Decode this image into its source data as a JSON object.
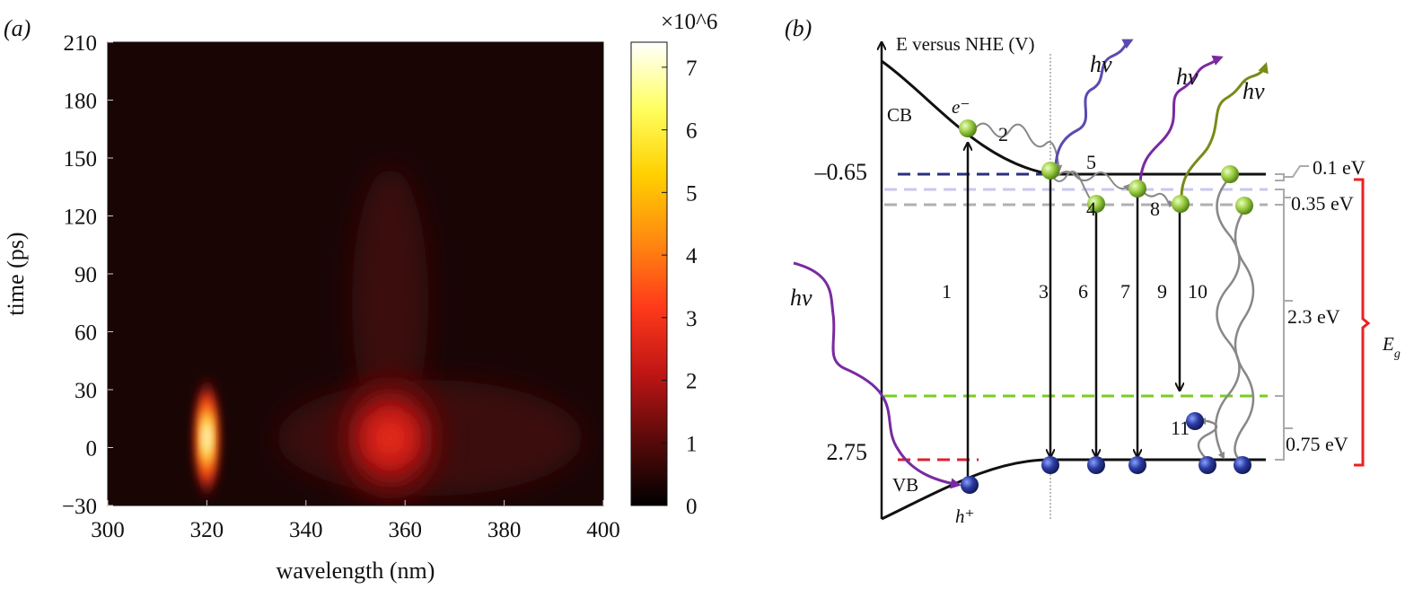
{
  "chart_data": [
    {
      "panel_label": "(a)",
      "type": "heatmap",
      "xlabel": "wavelength (nm)",
      "ylabel": "time (ps)",
      "xlim": [
        300,
        400
      ],
      "ylim": [
        -30,
        210
      ],
      "xticks": [
        300,
        320,
        340,
        360,
        380,
        400
      ],
      "yticks": [
        -30,
        0,
        30,
        60,
        90,
        120,
        150,
        180,
        210
      ],
      "background_color": "#1a0505",
      "colorbar": {
        "multiplier": "×10^6",
        "ticks": [
          0,
          1,
          2,
          3,
          4,
          5,
          6,
          7
        ],
        "range": [
          0,
          7.4
        ],
        "colormap": "hot",
        "colors": [
          "#000000",
          "#5a0a0a",
          "#c01515",
          "#ff3a1a",
          "#ff8a10",
          "#ffd000",
          "#ffff60",
          "#ffffff"
        ]
      },
      "peaks": [
        {
          "wavelength_nm": 320,
          "time_ps": 5,
          "intensity_e6": 7.3,
          "width_nm": 4,
          "duration_ps": 40
        },
        {
          "wavelength_nm": 357,
          "time_ps": 5,
          "intensity_e6": 3.2,
          "width_nm": 14,
          "duration_ps": 60,
          "tail_to_ps": 145
        }
      ]
    }
  ],
  "diagram": {
    "panel_label": "(b)",
    "axis_label": "E versus NHE (V)",
    "levels": {
      "cb_value": "–0.65",
      "vb_value": "2.75"
    },
    "band_labels": {
      "cb": "CB",
      "vb": "VB",
      "electron": "e⁻",
      "hole": "h⁺"
    },
    "photon": "hν",
    "steps": [
      "1",
      "2",
      "3",
      "4",
      "5",
      "6",
      "7",
      "8",
      "9",
      "10",
      "11"
    ],
    "energy_gaps": [
      "0.1 eV",
      "0.35 eV",
      "2.3 eV",
      "0.75 eV"
    ],
    "bandgap_label": "E",
    "bandgap_sub": "g",
    "colors": {
      "navy_level": "#2a2f7a",
      "lavender_level": "#c8c8ee",
      "gray_level": "#b0b0b0",
      "green_level": "#7acc22",
      "red_level": "#e02030",
      "eg_brace": "#ee2020",
      "photon_purple": "#7a2aa0",
      "photon_blue": "#5a4ab0",
      "photon_olive": "#7a8a18",
      "electron_ball": "#9ccc44",
      "hole_ball": "#2a3aa0"
    }
  }
}
